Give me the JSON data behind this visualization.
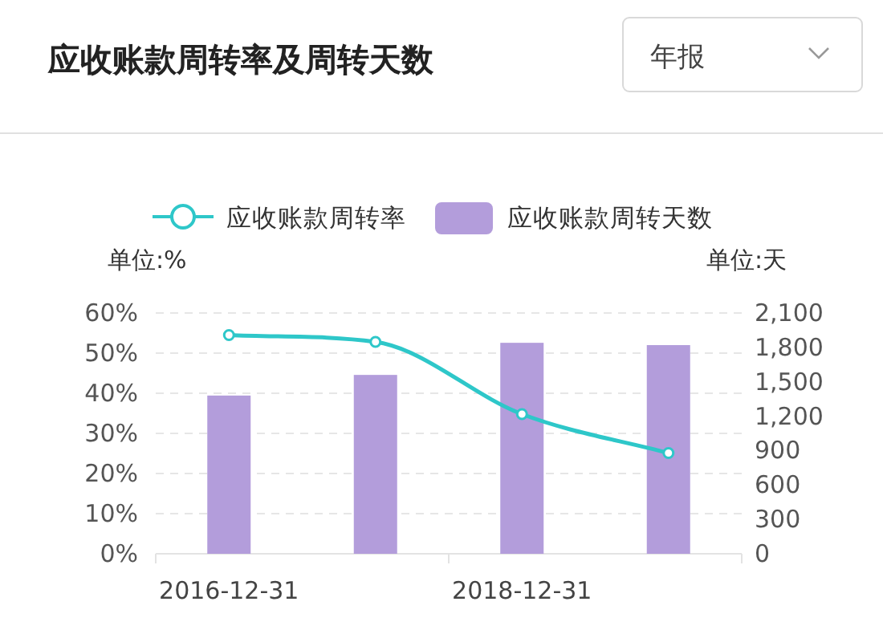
{
  "chart_data": {
    "type": "bar",
    "title": "应收账款周转率及周转天数",
    "annotations": [
      "年报"
    ],
    "categories": [
      "2016-12-31",
      null,
      "2018-12-31",
      null
    ],
    "series": [
      {
        "name": "应收账款周转率",
        "type": "line",
        "color": "#2ec7c9",
        "values": [
          54.5,
          52.8,
          34.8,
          25.1
        ],
        "marker": "circle"
      },
      {
        "name": "应收账款周转天数",
        "color": "#b39ddb",
        "values": [
          1380,
          1560,
          1840,
          1820
        ],
        "axis": "y2"
      }
    ],
    "ylabel": "单位:%",
    "y2label": "单位:天",
    "ylim": [
      0,
      60
    ],
    "yticks": [
      {
        "value": 0,
        "label": "0%"
      },
      {
        "value": 10,
        "label": "10%"
      },
      {
        "value": 20,
        "label": "20%"
      },
      {
        "value": 30,
        "label": "30%"
      },
      {
        "value": 40,
        "label": "40%"
      },
      {
        "value": 50,
        "label": "50%"
      },
      {
        "value": 60,
        "label": "60%"
      }
    ],
    "y2lim": [
      0,
      2100
    ],
    "y2ticks": [
      0,
      300,
      600,
      900,
      {
        "value": 1200,
        "label": "1,200"
      },
      {
        "value": 1500,
        "label": "1,500"
      },
      {
        "value": 1800,
        "label": "1,800"
      },
      {
        "value": 2100,
        "label": "2,100"
      }
    ],
    "grid": "y",
    "legend": "top"
  }
}
